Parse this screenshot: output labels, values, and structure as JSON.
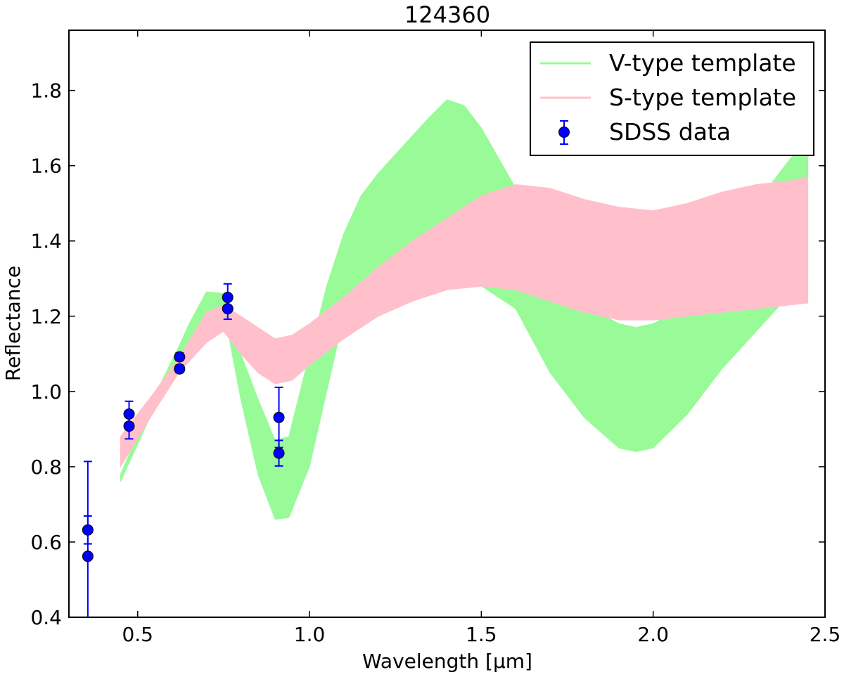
{
  "chart_data": {
    "type": "line",
    "title": "124360",
    "xlabel": "Wavelength [μm]",
    "ylabel": "Reflectance",
    "xlim": [
      0.3,
      2.5
    ],
    "ylim": [
      0.4,
      1.96
    ],
    "xticks": [
      "0.5",
      "1.0",
      "1.5",
      "2.0",
      "2.5"
    ],
    "yticks": [
      "0.4",
      "0.6",
      "0.8",
      "1.0",
      "1.2",
      "1.4",
      "1.6",
      "1.8"
    ],
    "grid": false,
    "legend_position": "top-right",
    "series": [
      {
        "name": "V-type template",
        "kind": "band",
        "color": "#98fb98",
        "x": [
          0.45,
          0.55,
          0.62,
          0.65,
          0.7,
          0.75,
          0.8,
          0.85,
          0.9,
          0.94,
          1.0,
          1.05,
          1.1,
          1.15,
          1.2,
          1.25,
          1.3,
          1.35,
          1.4,
          1.45,
          1.5,
          1.6,
          1.7,
          1.8,
          1.9,
          1.95,
          2.0,
          2.1,
          2.2,
          2.3,
          2.4,
          2.45
        ],
        "upper": [
          0.78,
          0.99,
          1.12,
          1.18,
          1.265,
          1.26,
          1.1,
          0.98,
          0.87,
          0.88,
          1.1,
          1.28,
          1.42,
          1.52,
          1.58,
          1.63,
          1.68,
          1.73,
          1.775,
          1.76,
          1.7,
          1.54,
          1.35,
          1.23,
          1.18,
          1.17,
          1.18,
          1.23,
          1.37,
          1.5,
          1.62,
          1.66
        ],
        "lower": [
          0.76,
          0.96,
          1.07,
          1.12,
          1.2,
          1.22,
          0.98,
          0.78,
          0.66,
          0.665,
          0.8,
          1.0,
          1.2,
          1.28,
          1.3,
          1.3,
          1.29,
          1.28,
          1.275,
          1.275,
          1.28,
          1.22,
          1.05,
          0.93,
          0.85,
          0.84,
          0.85,
          0.94,
          1.06,
          1.16,
          1.26,
          1.3
        ]
      },
      {
        "name": "S-type template",
        "kind": "band",
        "color": "#ffc0cb",
        "x": [
          0.45,
          0.55,
          0.62,
          0.7,
          0.75,
          0.8,
          0.85,
          0.9,
          0.95,
          1.0,
          1.1,
          1.2,
          1.3,
          1.4,
          1.5,
          1.6,
          1.7,
          1.8,
          1.9,
          2.0,
          2.1,
          2.2,
          2.3,
          2.4,
          2.45
        ],
        "upper": [
          0.88,
          1.0,
          1.09,
          1.21,
          1.23,
          1.2,
          1.17,
          1.14,
          1.15,
          1.18,
          1.25,
          1.33,
          1.4,
          1.46,
          1.52,
          1.55,
          1.54,
          1.51,
          1.49,
          1.48,
          1.5,
          1.53,
          1.55,
          1.56,
          1.57
        ],
        "lower": [
          0.8,
          0.95,
          1.05,
          1.13,
          1.16,
          1.1,
          1.05,
          1.02,
          1.03,
          1.07,
          1.14,
          1.2,
          1.24,
          1.27,
          1.28,
          1.27,
          1.24,
          1.21,
          1.19,
          1.19,
          1.2,
          1.21,
          1.22,
          1.23,
          1.235
        ]
      },
      {
        "name": "SDSS data",
        "kind": "errorbar",
        "color": "#0000ff",
        "points": [
          {
            "x": 0.355,
            "y": 0.632,
            "err": 0.037
          },
          {
            "x": 0.355,
            "y": 0.562,
            "err": 0.252
          },
          {
            "x": 0.475,
            "y": 0.94,
            "err": 0.034
          },
          {
            "x": 0.475,
            "y": 0.908,
            "err": 0.034
          },
          {
            "x": 0.622,
            "y": 1.092,
            "err": 0.01
          },
          {
            "x": 0.622,
            "y": 1.06,
            "err": 0.01
          },
          {
            "x": 0.762,
            "y": 1.25,
            "err": 0.036
          },
          {
            "x": 0.762,
            "y": 1.22,
            "err": 0.028
          },
          {
            "x": 0.911,
            "y": 0.931,
            "err": 0.08
          },
          {
            "x": 0.911,
            "y": 0.836,
            "err": 0.034
          }
        ]
      }
    ]
  }
}
